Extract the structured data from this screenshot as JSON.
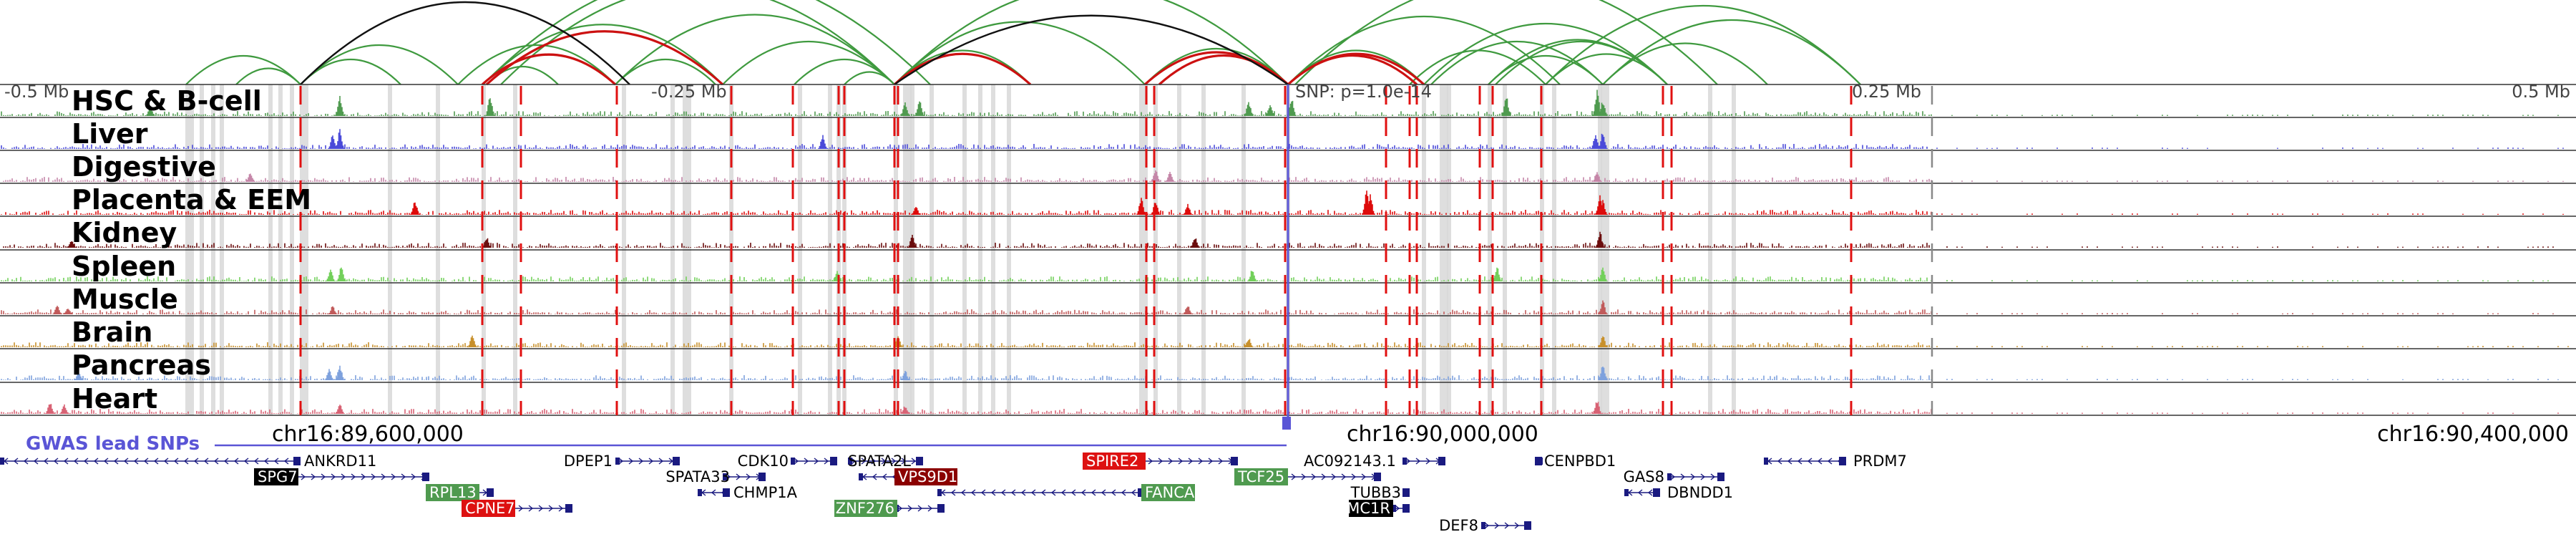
{
  "scale_bar": {
    "left_label": "-0.5 Mb",
    "left_mid_label": "-0.25 Mb",
    "snp_label": "SNP: p=1.0e-14",
    "right_mid_label": "0.25 Mb",
    "right_label": "0.5 Mb"
  },
  "tracks": [
    {
      "name": "HSC & B-cell",
      "color": "#4f9a4f"
    },
    {
      "name": "Liver",
      "color": "#4a4ad9"
    },
    {
      "name": "Digestive",
      "color": "#c586a8"
    },
    {
      "name": "Placenta & EEM",
      "color": "#dd0b0b"
    },
    {
      "name": "Kidney",
      "color": "#6b0d0d"
    },
    {
      "name": "Spleen",
      "color": "#72d05a"
    },
    {
      "name": "Muscle",
      "color": "#c15a5a"
    },
    {
      "name": "Brain",
      "color": "#c8902b"
    },
    {
      "name": "Pancreas",
      "color": "#7ea1dd"
    },
    {
      "name": "Heart",
      "color": "#d86274"
    }
  ],
  "gwas_label": "GWAS lead SNPs",
  "coordinates": [
    "chr16:89,600,000",
    "chr16:90,000,000",
    "chr16:90,400,000"
  ],
  "genes": [
    {
      "name": "ANKRD11",
      "highlight": "none"
    },
    {
      "name": "SPG7",
      "highlight": "black"
    },
    {
      "name": "RPL13",
      "highlight": "green"
    },
    {
      "name": "CPNE7",
      "highlight": "red"
    },
    {
      "name": "DPEP1",
      "highlight": "none"
    },
    {
      "name": "SPATA33",
      "highlight": "none"
    },
    {
      "name": "CHMP1A",
      "highlight": "none"
    },
    {
      "name": "CDK10",
      "highlight": "none"
    },
    {
      "name": "SPATA2L",
      "highlight": "none"
    },
    {
      "name": "VPS9D1",
      "highlight": "darkred"
    },
    {
      "name": "ZNF276",
      "highlight": "green"
    },
    {
      "name": "SPIRE2",
      "highlight": "red"
    },
    {
      "name": "FANCA",
      "highlight": "green"
    },
    {
      "name": "TCF25",
      "highlight": "green"
    },
    {
      "name": "AC092143.1",
      "highlight": "none"
    },
    {
      "name": "TUBB3",
      "highlight": "none"
    },
    {
      "name": "MC1R",
      "highlight": "black"
    },
    {
      "name": "DEF8",
      "highlight": "none"
    },
    {
      "name": "CENPBD1",
      "highlight": "none"
    },
    {
      "name": "GAS8",
      "highlight": "none"
    },
    {
      "name": "DBNDD1",
      "highlight": "none"
    },
    {
      "name": "PRDM7",
      "highlight": "none"
    }
  ],
  "colors": {
    "green_loop": "#3f9a3f",
    "red_loop": "#cc1111",
    "black_loop": "#111111",
    "boundary_red": "#e01010",
    "gwas_line": "#5a55d6",
    "gene_body": "#1a1a80",
    "grey_band": "#d8d8d8"
  }
}
